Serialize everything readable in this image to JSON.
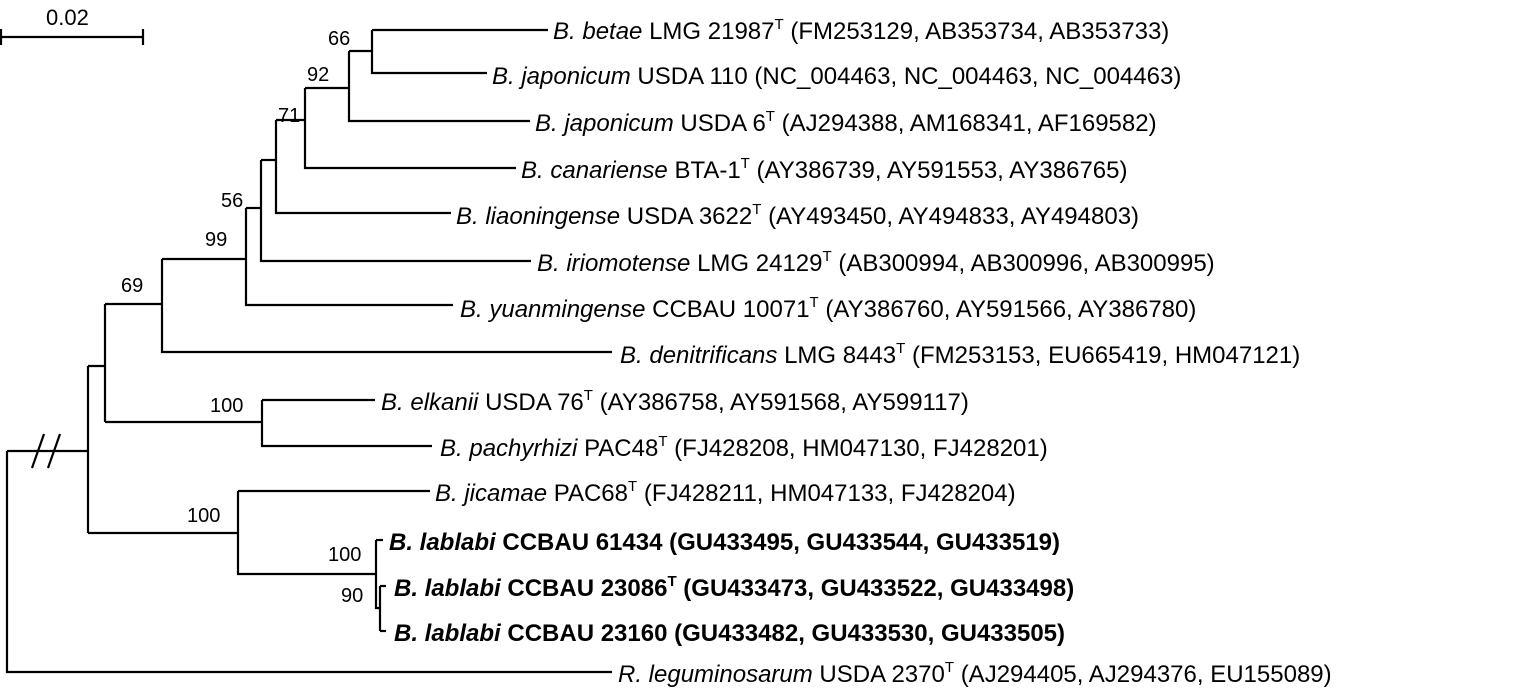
{
  "scale_bar": {
    "label": "0.02"
  },
  "colors": {
    "line": "#000000",
    "text": "#000000",
    "background": "#ffffff"
  },
  "taxa": [
    {
      "genus_species": "B. betae",
      "strain": "LMG 21987",
      "type_strain": true,
      "accessions": "(FM253129, AB353734,  AB353733)",
      "bold": false
    },
    {
      "genus_species": "B. japonicum",
      "strain": "USDA 110",
      "type_strain": false,
      "accessions": "(NC_004463,  NC_004463, NC_004463)",
      "bold": false
    },
    {
      "genus_species": "B. japonicum",
      "strain": "USDA 6",
      "type_strain": true,
      "accessions": "(AJ294388, AM168341, AF169582)",
      "bold": false
    },
    {
      "genus_species": "B. canariense",
      "strain": "BTA-1",
      "type_strain": true,
      "accessions": "(AY386739, AY591553, AY386765)",
      "bold": false
    },
    {
      "genus_species": "B. liaoningense",
      "strain": "USDA 3622",
      "type_strain": true,
      "accessions": "(AY493450, AY494833, AY494803)",
      "bold": false
    },
    {
      "genus_species": "B. iriomotense",
      "strain": "LMG 24129",
      "type_strain": true,
      "accessions": "(AB300994, AB300996, AB300995)",
      "bold": false
    },
    {
      "genus_species": "B. yuanmingense",
      "strain": "CCBAU 10071",
      "type_strain": true,
      "accessions": "(AY386760, AY591566, AY386780)",
      "bold": false
    },
    {
      "genus_species": "B. denitrificans",
      "strain": "LMG 8443",
      "type_strain": true,
      "accessions": "(FM253153,  EU665419,  HM047121)",
      "bold": false
    },
    {
      "genus_species": "B. elkanii",
      "strain": "USDA 76",
      "type_strain": true,
      "accessions": "(AY386758, AY591568, AY599117)",
      "bold": false
    },
    {
      "genus_species": "B. pachyrhizi",
      "strain": "PAC48",
      "type_strain": true,
      "accessions": "(FJ428208, HM047130,  FJ428201)",
      "bold": false
    },
    {
      "genus_species": "B. jicamae",
      "strain": "PAC68",
      "type_strain": true,
      "accessions": "(FJ428211, HM047133, FJ428204)",
      "bold": false
    },
    {
      "genus_species": "B. lablabi",
      "strain": "CCBAU 61434",
      "type_strain": false,
      "accessions": "(GU433495, GU433544, GU433519)",
      "bold": true
    },
    {
      "genus_species": "B. lablabi",
      "strain": "CCBAU 23086",
      "type_strain": true,
      "accessions": "(GU433473, GU433522, GU433498)",
      "bold": true
    },
    {
      "genus_species": "B. lablabi",
      "strain": "CCBAU 23160",
      "type_strain": false,
      "accessions": "(GU433482, GU433530, GU433505)",
      "bold": true
    },
    {
      "genus_species": "R. leguminosarum",
      "strain": "USDA 2370",
      "type_strain": true,
      "accessions": "(AJ294405, AJ294376, EU155089)",
      "bold": false
    }
  ],
  "type_marker": "T",
  "support_values": {
    "betae_usda110": "66",
    "japonicum_group": "92",
    "canariense_group": "71",
    "liaoningense_group": "56",
    "iriomotense_group": "99",
    "denitrificans_group": "69",
    "elkanii_pachyrhizi": "100",
    "jicamae_lablabi": "100",
    "lablabi_clade": "100",
    "lablabi_23086_23160": "90"
  }
}
